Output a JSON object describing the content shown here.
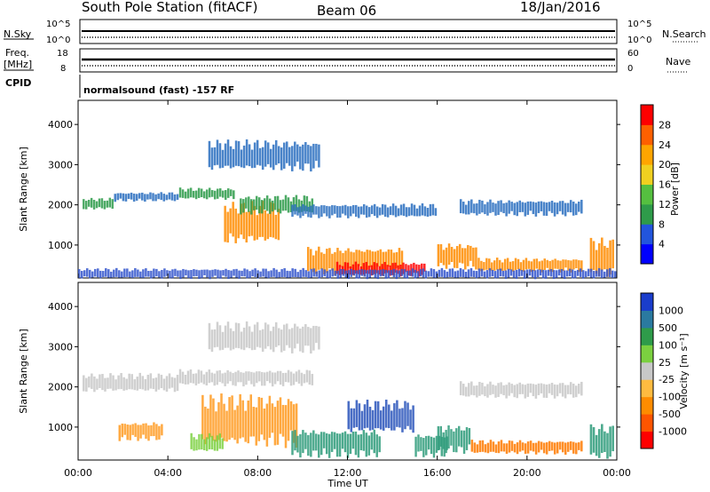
{
  "header": {
    "station_title": "South Pole Station (fitACF)",
    "beam": "Beam 06",
    "date": "18/Jan/2016"
  },
  "status_panels": {
    "nsky_label": "N.Sky",
    "nsearch_label": "N.Search",
    "nsky_ticks": [
      "10^5",
      "10^0"
    ],
    "nsearch_ticks": [
      "10^5",
      "10^0"
    ],
    "freq_label_line1": "Freq.",
    "freq_label_line2": "[MHz]",
    "freq_ticks": [
      "18",
      "8"
    ],
    "nave_label": "Nave",
    "nave_ticks": [
      "60",
      "0"
    ],
    "cpid_label": "CPID",
    "cpid_text": "normalsound (fast) -157 RF"
  },
  "chart_data": [
    {
      "type": "heatmap",
      "name": "power",
      "ylabel": "Slant Range [km]",
      "yticks": [
        "4000",
        "3000",
        "2000",
        "1000"
      ],
      "ylim": [
        180,
        4600
      ],
      "xlim": [
        0,
        24
      ],
      "colorbar_label": "Power [dB]",
      "colorbar_ticks": [
        "28",
        "24",
        "20",
        "16",
        "12",
        "8",
        "4"
      ],
      "colorbar_colors": [
        "#0000ff",
        "#2255dd",
        "#2e9b4a",
        "#55c040",
        "#f0d020",
        "#ffa500",
        "#ff6000",
        "#ff0000"
      ],
      "features": [
        {
          "t0": 0.2,
          "t1": 1.6,
          "r0": 1900,
          "r1": 2150,
          "level": "mid"
        },
        {
          "t0": 1.6,
          "t1": 4.5,
          "r0": 2100,
          "r1": 2300,
          "level": "low"
        },
        {
          "t0": 4.5,
          "t1": 7.0,
          "r0": 2150,
          "r1": 2400,
          "level": "mid"
        },
        {
          "t0": 6.5,
          "t1": 9.0,
          "r0": 1100,
          "r1": 2000,
          "level": "high"
        },
        {
          "t0": 7.2,
          "t1": 10.5,
          "r0": 1800,
          "r1": 2200,
          "level": "mid"
        },
        {
          "t0": 5.8,
          "t1": 10.8,
          "r0": 2900,
          "r1": 3550,
          "level": "low"
        },
        {
          "t0": 10.2,
          "t1": 14.5,
          "r0": 300,
          "r1": 900,
          "level": "high"
        },
        {
          "t0": 11.5,
          "t1": 15.5,
          "r0": 250,
          "r1": 550,
          "level": "max"
        },
        {
          "t0": 9.5,
          "t1": 16.0,
          "r0": 1700,
          "r1": 2000,
          "level": "low"
        },
        {
          "t0": 16.0,
          "t1": 17.8,
          "r0": 450,
          "r1": 1000,
          "level": "high"
        },
        {
          "t0": 17.8,
          "t1": 22.5,
          "r0": 350,
          "r1": 650,
          "level": "high"
        },
        {
          "t0": 17.0,
          "t1": 22.5,
          "r0": 1750,
          "r1": 2100,
          "level": "low"
        },
        {
          "t0": 22.8,
          "t1": 23.9,
          "r0": 250,
          "r1": 1100,
          "level": "high"
        },
        {
          "t0": 0.0,
          "t1": 24.0,
          "r0": 180,
          "r1": 400,
          "level": "ground"
        }
      ]
    },
    {
      "type": "heatmap",
      "name": "velocity",
      "ylabel": "Slant Range [km]",
      "xlabel": "Time UT",
      "yticks": [
        "4000",
        "3000",
        "2000",
        "1000"
      ],
      "ylim": [
        180,
        4600
      ],
      "xticks": [
        "00:00",
        "04:00",
        "08:00",
        "12:00",
        "16:00",
        "20:00",
        "00:00"
      ],
      "xlim": [
        0,
        24
      ],
      "colorbar_label": "Velocity [m s⁻¹]",
      "colorbar_ticks": [
        "1000",
        "500",
        "100",
        "25",
        "-25",
        "-100",
        "-500",
        "-1000"
      ],
      "colorbar_colors": [
        "#ff0000",
        "#ff5500",
        "#ff8c00",
        "#ffbb40",
        "#c8c8c8",
        "#7bd040",
        "#2e9b4a",
        "#2a7aa0",
        "#1a3dcc"
      ],
      "features": [
        {
          "t0": 0.2,
          "t1": 4.5,
          "r0": 1900,
          "r1": 2300,
          "level": "gray"
        },
        {
          "t0": 4.5,
          "t1": 10.5,
          "r0": 2050,
          "r1": 2400,
          "level": "gray"
        },
        {
          "t0": 1.8,
          "t1": 3.8,
          "r0": 700,
          "r1": 1100,
          "level": "orange"
        },
        {
          "t0": 5.5,
          "t1": 9.8,
          "r0": 600,
          "r1": 1700,
          "level": "orange"
        },
        {
          "t0": 5.0,
          "t1": 6.5,
          "r0": 400,
          "r1": 800,
          "level": "green"
        },
        {
          "t0": 9.5,
          "t1": 13.5,
          "r0": 300,
          "r1": 900,
          "level": "teal"
        },
        {
          "t0": 12.0,
          "t1": 15.0,
          "r0": 900,
          "r1": 1600,
          "level": "blue"
        },
        {
          "t0": 15.0,
          "t1": 16.5,
          "r0": 300,
          "r1": 800,
          "level": "teal"
        },
        {
          "t0": 16.0,
          "t1": 17.5,
          "r0": 400,
          "r1": 1000,
          "level": "teal"
        },
        {
          "t0": 17.5,
          "t1": 22.5,
          "r0": 350,
          "r1": 650,
          "level": "darkorange"
        },
        {
          "t0": 17.0,
          "t1": 22.5,
          "r0": 1750,
          "r1": 2100,
          "level": "gray"
        },
        {
          "t0": 5.8,
          "t1": 10.8,
          "r0": 2900,
          "r1": 3550,
          "level": "gray"
        },
        {
          "t0": 22.8,
          "t1": 23.9,
          "r0": 250,
          "r1": 1000,
          "level": "teal"
        }
      ]
    }
  ]
}
